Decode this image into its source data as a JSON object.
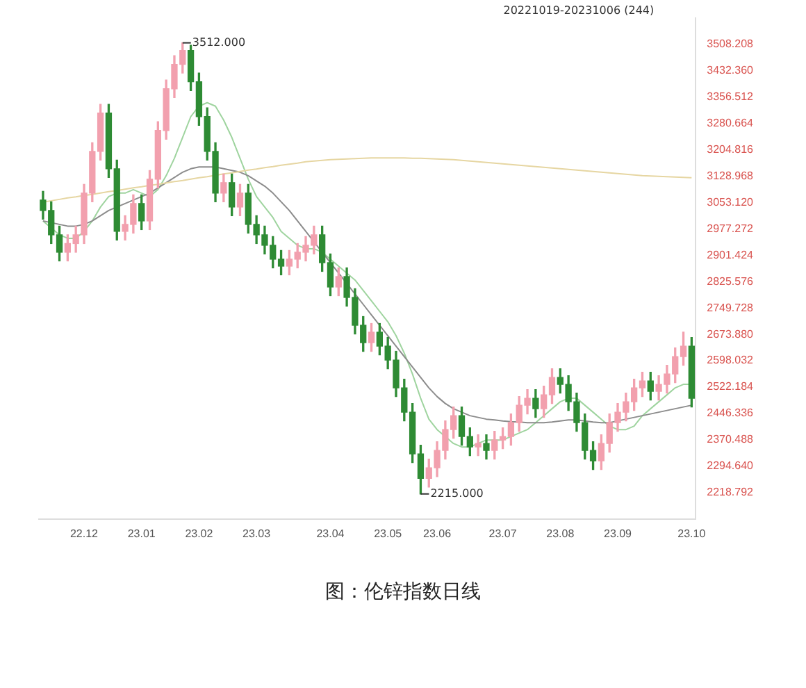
{
  "chart_data": {
    "type": "candlestick",
    "title": "图：伦锌指数日线",
    "annotations": [
      "20221019-20231006 (244)",
      "3512.000",
      "2215.000"
    ],
    "categories": [
      null,
      null,
      null,
      null,
      null,
      "22.12",
      null,
      null,
      null,
      null,
      null,
      null,
      "23.01",
      null,
      null,
      null,
      null,
      null,
      null,
      "23.02",
      null,
      null,
      null,
      null,
      null,
      null,
      "23.03",
      null,
      null,
      null,
      null,
      null,
      null,
      null,
      null,
      "23.04",
      null,
      null,
      null,
      null,
      null,
      null,
      "23.05",
      null,
      null,
      null,
      null,
      null,
      "23.06",
      null,
      null,
      null,
      null,
      null,
      null,
      null,
      "23.07",
      null,
      null,
      null,
      null,
      null,
      null,
      "23.08",
      null,
      null,
      null,
      null,
      null,
      null,
      "23.09",
      null,
      null,
      null,
      null,
      null,
      null,
      null,
      null,
      "23.10"
    ],
    "ohlc": [
      [
        3060,
        3085,
        3005,
        3030
      ],
      [
        3030,
        3055,
        2935,
        2960
      ],
      [
        2960,
        2985,
        2885,
        2910
      ],
      [
        2910,
        2960,
        2885,
        2935
      ],
      [
        2935,
        2985,
        2910,
        2960
      ],
      [
        2960,
        3105,
        2935,
        3080
      ],
      [
        3080,
        3225,
        3055,
        3200
      ],
      [
        3200,
        3335,
        3175,
        3310
      ],
      [
        3310,
        3335,
        3125,
        3150
      ],
      [
        3150,
        3175,
        2945,
        2970
      ],
      [
        2970,
        3015,
        2945,
        2990
      ],
      [
        2990,
        3075,
        2965,
        3050
      ],
      [
        3050,
        3075,
        2975,
        3000
      ],
      [
        3000,
        3145,
        2975,
        3120
      ],
      [
        3120,
        3285,
        3095,
        3260
      ],
      [
        3260,
        3405,
        3235,
        3380
      ],
      [
        3380,
        3475,
        3355,
        3450
      ],
      [
        3450,
        3512,
        3425,
        3490
      ],
      [
        3490,
        3505,
        3375,
        3400
      ],
      [
        3400,
        3425,
        3275,
        3300
      ],
      [
        3300,
        3325,
        3175,
        3200
      ],
      [
        3200,
        3225,
        3055,
        3080
      ],
      [
        3080,
        3135,
        3055,
        3110
      ],
      [
        3110,
        3135,
        3015,
        3040
      ],
      [
        3040,
        3105,
        3015,
        3080
      ],
      [
        3080,
        3105,
        2965,
        2990
      ],
      [
        2990,
        3015,
        2935,
        2960
      ],
      [
        2960,
        2985,
        2905,
        2930
      ],
      [
        2930,
        2955,
        2865,
        2890
      ],
      [
        2890,
        2915,
        2845,
        2870
      ],
      [
        2870,
        2915,
        2845,
        2890
      ],
      [
        2890,
        2935,
        2865,
        2910
      ],
      [
        2910,
        2955,
        2885,
        2930
      ],
      [
        2930,
        2985,
        2905,
        2960
      ],
      [
        2960,
        2985,
        2855,
        2880
      ],
      [
        2880,
        2905,
        2785,
        2810
      ],
      [
        2810,
        2865,
        2785,
        2840
      ],
      [
        2840,
        2865,
        2755,
        2780
      ],
      [
        2780,
        2805,
        2675,
        2700
      ],
      [
        2700,
        2725,
        2625,
        2650
      ],
      [
        2650,
        2705,
        2625,
        2680
      ],
      [
        2680,
        2705,
        2615,
        2640
      ],
      [
        2640,
        2665,
        2575,
        2600
      ],
      [
        2600,
        2625,
        2495,
        2520
      ],
      [
        2520,
        2545,
        2425,
        2450
      ],
      [
        2450,
        2475,
        2305,
        2330
      ],
      [
        2330,
        2355,
        2215,
        2260
      ],
      [
        2260,
        2315,
        2235,
        2290
      ],
      [
        2290,
        2365,
        2265,
        2340
      ],
      [
        2340,
        2425,
        2315,
        2400
      ],
      [
        2400,
        2465,
        2375,
        2440
      ],
      [
        2440,
        2465,
        2355,
        2380
      ],
      [
        2380,
        2405,
        2325,
        2350
      ],
      [
        2350,
        2385,
        2325,
        2360
      ],
      [
        2360,
        2385,
        2315,
        2340
      ],
      [
        2340,
        2395,
        2315,
        2370
      ],
      [
        2370,
        2405,
        2345,
        2380
      ],
      [
        2380,
        2445,
        2355,
        2420
      ],
      [
        2420,
        2495,
        2395,
        2470
      ],
      [
        2470,
        2515,
        2445,
        2490
      ],
      [
        2490,
        2515,
        2435,
        2460
      ],
      [
        2460,
        2525,
        2435,
        2500
      ],
      [
        2500,
        2575,
        2475,
        2550
      ],
      [
        2550,
        2575,
        2505,
        2530
      ],
      [
        2530,
        2555,
        2455,
        2480
      ],
      [
        2480,
        2505,
        2395,
        2420
      ],
      [
        2420,
        2445,
        2315,
        2340
      ],
      [
        2340,
        2365,
        2285,
        2310
      ],
      [
        2310,
        2385,
        2285,
        2360
      ],
      [
        2360,
        2445,
        2335,
        2420
      ],
      [
        2420,
        2475,
        2395,
        2450
      ],
      [
        2450,
        2505,
        2425,
        2480
      ],
      [
        2480,
        2545,
        2455,
        2520
      ],
      [
        2520,
        2565,
        2495,
        2540
      ],
      [
        2540,
        2565,
        2485,
        2510
      ],
      [
        2510,
        2555,
        2485,
        2530
      ],
      [
        2530,
        2585,
        2505,
        2560
      ],
      [
        2560,
        2635,
        2535,
        2610
      ],
      [
        2610,
        2680,
        2585,
        2640
      ],
      [
        2640,
        2665,
        2465,
        2490
      ]
    ],
    "colors": [
      "#2e8b34",
      "#2e8b34",
      "#2e8b34",
      "#f2a0ae",
      "#f2a0ae",
      "#f2a0ae",
      "#f2a0ae",
      "#f2a0ae",
      "#2e8b34",
      "#2e8b34",
      "#f2a0ae",
      "#f2a0ae",
      "#2e8b34",
      "#f2a0ae",
      "#f2a0ae",
      "#f2a0ae",
      "#f2a0ae",
      "#f2a0ae",
      "#2e8b34",
      "#2e8b34",
      "#2e8b34",
      "#2e8b34",
      "#f2a0ae",
      "#2e8b34",
      "#f2a0ae",
      "#2e8b34",
      "#2e8b34",
      "#2e8b34",
      "#2e8b34",
      "#2e8b34",
      "#f2a0ae",
      "#f2a0ae",
      "#f2a0ae",
      "#f2a0ae",
      "#2e8b34",
      "#2e8b34",
      "#f2a0ae",
      "#2e8b34",
      "#2e8b34",
      "#2e8b34",
      "#f2a0ae",
      "#2e8b34",
      "#2e8b34",
      "#2e8b34",
      "#2e8b34",
      "#2e8b34",
      "#2e8b34",
      "#f2a0ae",
      "#f2a0ae",
      "#f2a0ae",
      "#f2a0ae",
      "#2e8b34",
      "#2e8b34",
      "#f2a0ae",
      "#2e8b34",
      "#f2a0ae",
      "#f2a0ae",
      "#f2a0ae",
      "#f2a0ae",
      "#f2a0ae",
      "#2e8b34",
      "#f2a0ae",
      "#f2a0ae",
      "#2e8b34",
      "#2e8b34",
      "#2e8b34",
      "#2e8b34",
      "#2e8b34",
      "#f2a0ae",
      "#f2a0ae",
      "#f2a0ae",
      "#f2a0ae",
      "#f2a0ae",
      "#f2a0ae",
      "#2e8b34",
      "#f2a0ae",
      "#f2a0ae",
      "#f2a0ae",
      "#f2a0ae",
      "#2e8b34"
    ],
    "series": [
      {
        "type": "line",
        "color": "#e6d6a2",
        "values": [
          3054,
          3058,
          3062,
          3066,
          3069,
          3073,
          3076,
          3080,
          3084,
          3087,
          3091,
          3095,
          3098,
          3102,
          3105,
          3109,
          3113,
          3116,
          3120,
          3124,
          3127,
          3131,
          3135,
          3138,
          3142,
          3146,
          3149,
          3153,
          3156,
          3160,
          3163,
          3166,
          3170,
          3172,
          3174,
          3176,
          3177,
          3178,
          3179,
          3180,
          3181,
          3181,
          3181,
          3181,
          3181,
          3180,
          3180,
          3179,
          3178,
          3177,
          3176,
          3174,
          3172,
          3170,
          3168,
          3166,
          3164,
          3162,
          3160,
          3158,
          3156,
          3154,
          3152,
          3150,
          3148,
          3146,
          3144,
          3142,
          3140,
          3138,
          3136,
          3134,
          3132,
          3130,
          3129,
          3128,
          3127,
          3126,
          3125,
          3124
        ]
      },
      {
        "type": "line",
        "color": "#8c8c8c",
        "values": [
          3000,
          2995,
          2990,
          2985,
          2985,
          2990,
          3000,
          3015,
          3030,
          3040,
          3050,
          3060,
          3070,
          3080,
          3095,
          3110,
          3125,
          3140,
          3150,
          3155,
          3155,
          3155,
          3150,
          3145,
          3140,
          3130,
          3115,
          3100,
          3080,
          3055,
          3030,
          3000,
          2970,
          2940,
          2910,
          2880,
          2850,
          2820,
          2790,
          2760,
          2730,
          2700,
          2670,
          2640,
          2610,
          2580,
          2550,
          2520,
          2495,
          2475,
          2460,
          2450,
          2440,
          2435,
          2430,
          2428,
          2425,
          2423,
          2422,
          2420,
          2420,
          2420,
          2422,
          2425,
          2428,
          2428,
          2425,
          2422,
          2420,
          2420,
          2425,
          2430,
          2435,
          2440,
          2445,
          2450,
          2455,
          2460,
          2465,
          2470
        ]
      },
      {
        "type": "line",
        "color": "#9fd49f",
        "values": [
          3000,
          2980,
          2960,
          2950,
          2950,
          2970,
          3000,
          3040,
          3070,
          3080,
          3080,
          3090,
          3080,
          3070,
          3090,
          3130,
          3180,
          3240,
          3300,
          3330,
          3340,
          3330,
          3290,
          3240,
          3180,
          3120,
          3070,
          3040,
          3010,
          2970,
          2950,
          2930,
          2920,
          2920,
          2910,
          2890,
          2870,
          2850,
          2830,
          2800,
          2770,
          2740,
          2710,
          2670,
          2620,
          2560,
          2490,
          2430,
          2400,
          2380,
          2360,
          2350,
          2350,
          2360,
          2370,
          2370,
          2370,
          2380,
          2390,
          2400,
          2420,
          2440,
          2460,
          2480,
          2490,
          2490,
          2470,
          2450,
          2430,
          2410,
          2400,
          2400,
          2410,
          2440,
          2460,
          2480,
          2500,
          2520,
          2530,
          2530
        ]
      }
    ],
    "ylim": [
      2142.944,
      3584.056
    ],
    "yticks": [
      {
        "value": 2218.792,
        "label": "2218.792"
      },
      {
        "value": 2294.64,
        "label": "2294.640"
      },
      {
        "value": 2370.488,
        "label": "2370.488"
      },
      {
        "value": 2446.336,
        "label": "2446.336"
      },
      {
        "value": 2522.184,
        "label": "2522.184"
      },
      {
        "value": 2598.032,
        "label": "2598.032"
      },
      {
        "value": 2673.88,
        "label": "2673.880"
      },
      {
        "value": 2749.728,
        "label": "2749.728"
      },
      {
        "value": 2825.576,
        "label": "2825.576"
      },
      {
        "value": 2901.424,
        "label": "2901.424"
      },
      {
        "value": 2977.272,
        "label": "2977.272"
      },
      {
        "value": 3053.12,
        "label": "3053.120"
      },
      {
        "value": 3128.968,
        "label": "3128.968"
      },
      {
        "value": 3204.816,
        "label": "3204.816"
      },
      {
        "value": 3280.664,
        "label": "3280.664"
      },
      {
        "value": 3356.512,
        "label": "3356.512"
      },
      {
        "value": 3432.36,
        "label": "3432.360"
      },
      {
        "value": 3508.208,
        "label": "3508.208"
      }
    ],
    "grid": false,
    "legend": false
  }
}
